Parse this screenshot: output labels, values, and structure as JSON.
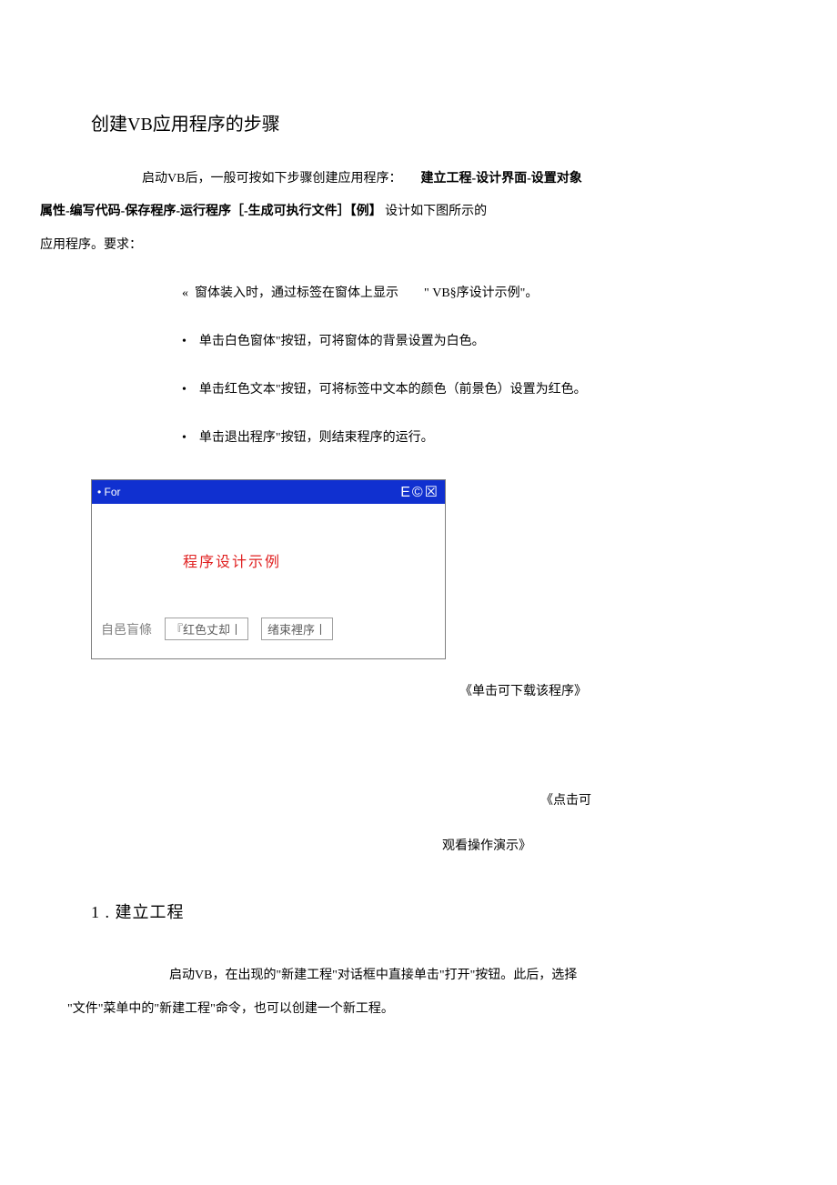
{
  "title": "创建VB应用程序的步骤",
  "intro": {
    "p1_a": "启动VB后，一般可按如下步骤创建应用程序：",
    "p1_b": "建立工程-设计界面-设置对象",
    "p2_a": "属性-编写代码-保存程序-运行程序［-生成可执行文件］【例】",
    "p2_b": "设计如下图所示的",
    "p3": "应用程序。要求："
  },
  "bullets": {
    "b1_marker": "«",
    "b1_a": "窗体装入时，通过标签在窗体上显示",
    "b1_b": "\" VB§序设计示例\"。",
    "dot": "•",
    "b2": "单击白色窗体\"按钮，可将窗体的背景设置为白色。",
    "b3": "单击红色文本\"按钮，可将标签中文本的颜色（前景色）设置为红色。",
    "b4": "单击退出程序\"按钮，则结束程序的运行。"
  },
  "window": {
    "titlebar_left": "• For",
    "titlebar_right": "E©☒",
    "label": "程序设计示例",
    "btn_label1": "自邑盲條",
    "btn_box1": "『红色丈却丨",
    "btn_box2": "绪束裡序丨"
  },
  "links": {
    "download": "《单击可下载该程序》",
    "demo1": "《点击可",
    "demo2": "观看操作演示》"
  },
  "section": {
    "heading": "1 . 建立工程",
    "p1": "启动VB，在出现的\"新建工程\"对话框中直接单击\"打开\"按钮。此后，选择",
    "p2": "\"文件\"菜单中的\"新建工程\"命令，也可以创建一个新工程。"
  },
  "colors": {
    "titlebar_bg": "#1030d0",
    "label_color": "#e02020",
    "text_color": "#000000",
    "muted": "#808080"
  }
}
